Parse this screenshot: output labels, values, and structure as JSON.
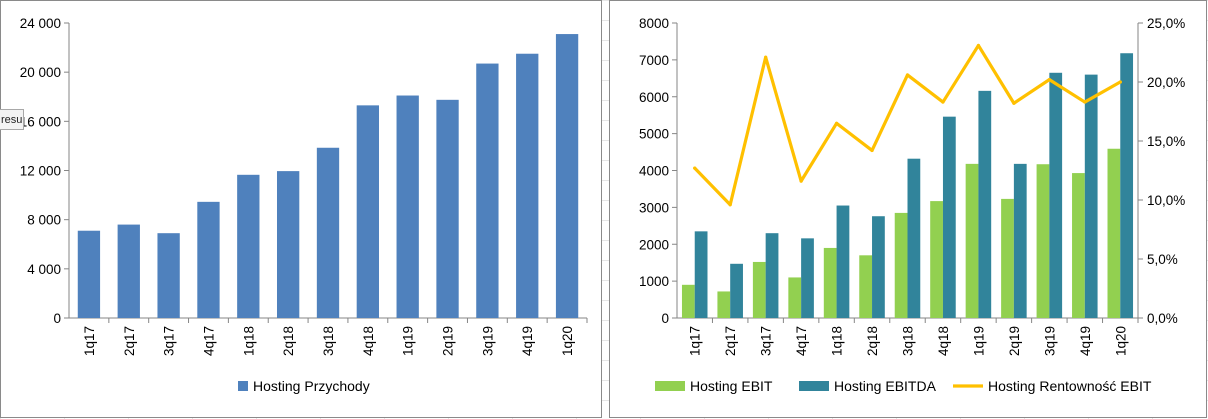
{
  "tooltip_fragment": "resu",
  "chart_data": [
    {
      "type": "bar",
      "categories": [
        "1q17",
        "2q17",
        "3q17",
        "4q17",
        "1q18",
        "2q18",
        "3q18",
        "4q18",
        "1q19",
        "2q19",
        "3q19",
        "4q19",
        "1q20"
      ],
      "series": [
        {
          "name": "Hosting Przychody",
          "color": "#4f81bd",
          "values": [
            7100,
            7600,
            6900,
            9450,
            11650,
            11950,
            13850,
            17300,
            18100,
            17750,
            20700,
            21500,
            23100
          ]
        }
      ],
      "ylim": [
        0,
        24000
      ],
      "yticks": [
        "0",
        "4 000",
        "8 000",
        "12 000",
        "16 000",
        "20 000",
        "24 000"
      ],
      "legend": "bottom",
      "grid": false
    },
    {
      "type": "bar+line",
      "categories": [
        "1q17",
        "2q17",
        "3q17",
        "4q17",
        "1q18",
        "2q18",
        "3q18",
        "4q18",
        "1q19",
        "2q19",
        "3q19",
        "4q19",
        "1q20"
      ],
      "series": [
        {
          "name": "Hosting EBIT",
          "type": "bar",
          "axis": "left",
          "color": "#92d050",
          "values": [
            900,
            720,
            1520,
            1100,
            1900,
            1700,
            2850,
            3170,
            4180,
            3230,
            4170,
            3930,
            4590
          ]
        },
        {
          "name": "Hosting EBITDA",
          "type": "bar",
          "axis": "left",
          "color": "#31849b",
          "values": [
            2350,
            1470,
            2300,
            2160,
            3050,
            2760,
            4320,
            5460,
            6160,
            4180,
            6650,
            6600,
            7180
          ]
        },
        {
          "name": "Hosting Rentowność EBIT",
          "type": "line",
          "axis": "right",
          "color": "#ffc000",
          "values": [
            12.7,
            9.6,
            22.1,
            11.6,
            16.5,
            14.2,
            20.6,
            18.3,
            23.1,
            18.2,
            20.2,
            18.3,
            20.0
          ]
        }
      ],
      "ylim_left": [
        0,
        8000
      ],
      "yticks_left": [
        "0",
        "1000",
        "2000",
        "3000",
        "4000",
        "5000",
        "6000",
        "7000",
        "8000"
      ],
      "ylim_right": [
        0,
        25
      ],
      "yticks_right": [
        "0,0%",
        "5,0%",
        "10,0%",
        "15,0%",
        "20,0%",
        "25,0%"
      ],
      "legend": "bottom",
      "grid": false
    }
  ]
}
